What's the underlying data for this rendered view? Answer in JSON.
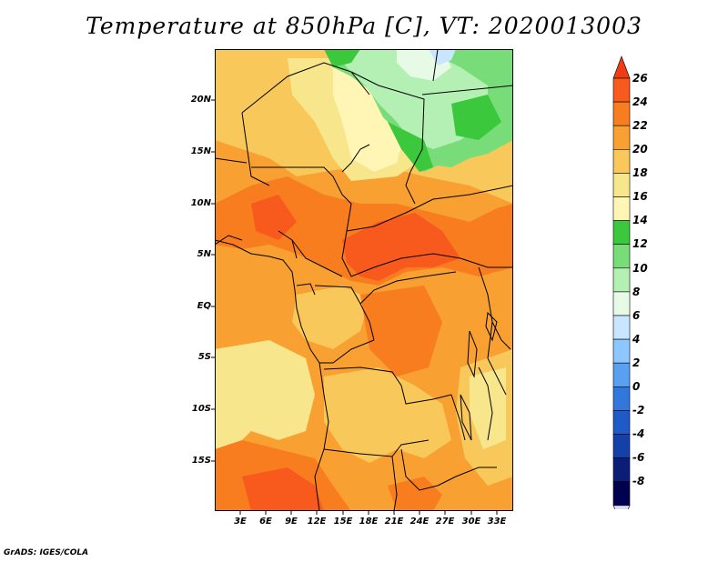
{
  "title": "Temperature at 850hPa [C], VT: 2020013003",
  "footer": "GrADS: IGES/COLA",
  "map": {
    "lat_labels": [
      "20N",
      "15N",
      "10N",
      "5N",
      "EQ",
      "5S",
      "10S",
      "15S"
    ],
    "lon_labels": [
      "3E",
      "6E",
      "9E",
      "12E",
      "15E",
      "18E",
      "21E",
      "24E",
      "27E",
      "30E",
      "33E"
    ]
  },
  "colorbar": {
    "levels": [
      "26",
      "24",
      "22",
      "20",
      "18",
      "16",
      "14",
      "12",
      "10",
      "8",
      "6",
      "4",
      "2",
      "0",
      "-2",
      "-4",
      "-6",
      "-8"
    ],
    "colors": [
      "#f03c14",
      "#f85a1e",
      "#f87d1e",
      "#f8a032",
      "#f8c85a",
      "#f8e68c",
      "#fff5b4",
      "#3cc83c",
      "#78dc78",
      "#b4f0b4",
      "#e6fae6",
      "#c8e6ff",
      "#8cc8ff",
      "#5aa0f0",
      "#3278dc",
      "#1e5ac8",
      "#1440aa",
      "#0a1e78",
      "#000050",
      "#dcdcf5"
    ]
  }
}
